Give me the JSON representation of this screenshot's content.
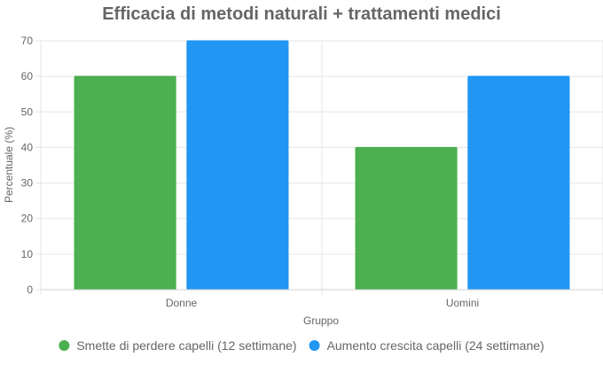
{
  "chart_data": {
    "type": "bar",
    "title": "Efficacia di metodi naturali + trattamenti medici",
    "xlabel": "Gruppo",
    "ylabel": "Percentuale (%)",
    "categories": [
      "Donne",
      "Uomini"
    ],
    "series": [
      {
        "name": "Smette di perdere capelli (12 settimane)",
        "values": [
          60,
          40
        ],
        "color": "#4CAF50"
      },
      {
        "name": "Aumento crescita capelli (24 settimane)",
        "values": [
          70,
          60
        ],
        "color": "#2196F3"
      }
    ],
    "ylim": [
      0,
      70
    ],
    "yticks": [
      0,
      10,
      20,
      30,
      40,
      50,
      60,
      70
    ],
    "grid": true,
    "legend_position": "bottom"
  }
}
